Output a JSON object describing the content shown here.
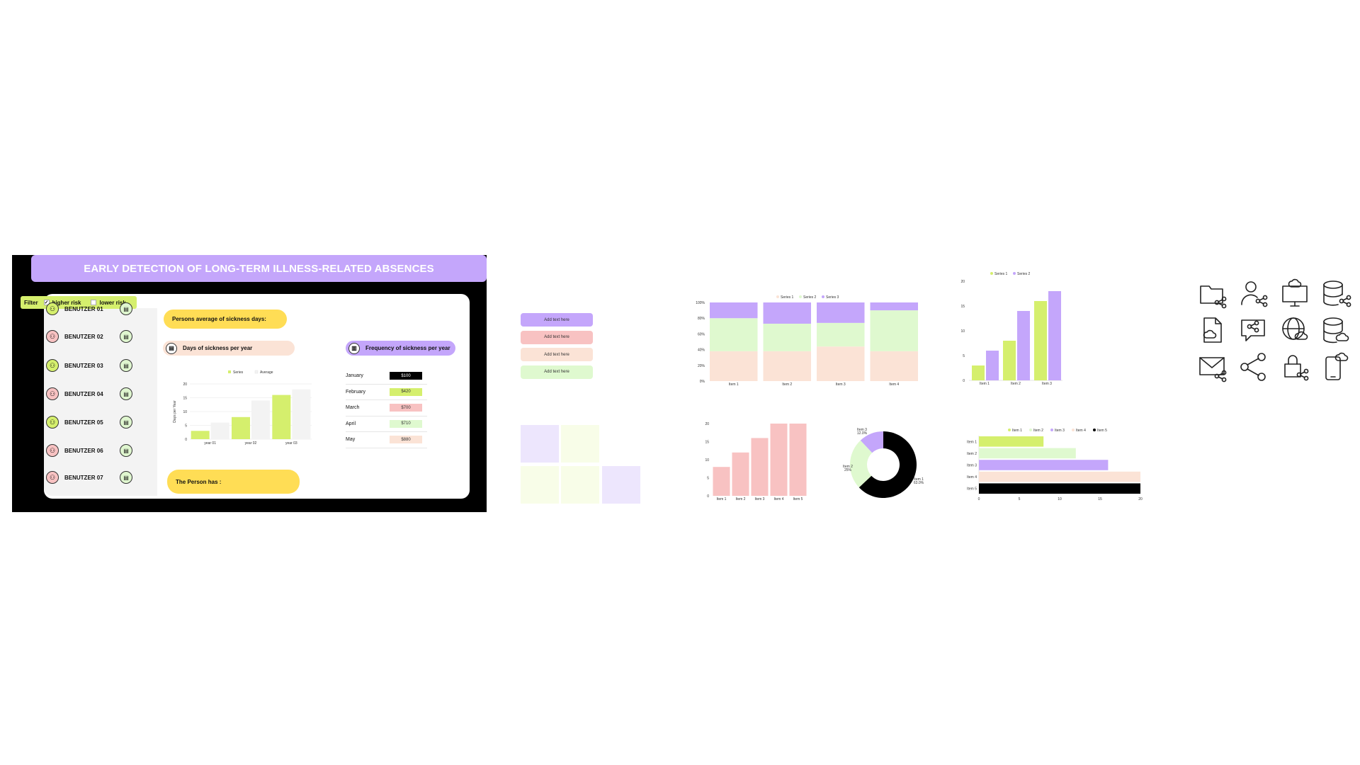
{
  "dashboard": {
    "title": "EARLY DETECTION OF LONG-TERM ILLNESS-RELATED ABSENCES",
    "filter": {
      "label": "Filter",
      "options": [
        {
          "label": "higher risk",
          "checked": true
        },
        {
          "label": "lower risk",
          "checked": false
        }
      ]
    },
    "users": [
      {
        "name": "BENUTZER 01",
        "risk": "low"
      },
      {
        "name": "BENUTZER 02",
        "risk": "high"
      },
      {
        "name": "BENUTZER 03",
        "risk": "low"
      },
      {
        "name": "BENUTZER 04",
        "risk": "high"
      },
      {
        "name": "BENUTZER 05",
        "risk": "low"
      },
      {
        "name": "BENUTZER 06",
        "risk": "high"
      },
      {
        "name": "BENUTZER 07",
        "risk": "high"
      }
    ],
    "avg_days_label": "Persons average of sickness days:",
    "days_per_year_label": "Days of sickness per year",
    "frequency_label": "Frequency of sickness per year",
    "person_has_label": "The Person has :",
    "frequency_rows": [
      {
        "month": "January",
        "value": "$100",
        "color": "#000000",
        "text_color": "#ffffff"
      },
      {
        "month": "February",
        "value": "$420",
        "color": "#d5ef6d",
        "text_color": "#333333"
      },
      {
        "month": "March",
        "value": "$700",
        "color": "#f8c2c2",
        "text_color": "#333333"
      },
      {
        "month": "April",
        "value": "$710",
        "color": "#dff9cf",
        "text_color": "#333333"
      },
      {
        "month": "May",
        "value": "$880",
        "color": "#fbe3d6",
        "text_color": "#333333"
      }
    ],
    "colors": {
      "accent_purple": "#c4a6fb",
      "lime": "#d5ef6d",
      "yellow": "#ffdd55",
      "peach": "#fbe3d6",
      "pink": "#f8c2c2",
      "mint": "#dff9cf"
    }
  },
  "swatch_buttons": [
    {
      "label": "Add text here",
      "color": "#c4a6fb"
    },
    {
      "label": "Add text here",
      "color": "#f8c2c2"
    },
    {
      "label": "Add text here",
      "color": "#fbe3d6"
    },
    {
      "label": "Add text here",
      "color": "#dff9cf"
    }
  ],
  "color_squares": [
    "#ede6fd",
    "#f8fde8",
    "#f8fde8",
    "#f8fde8",
    "#ede6fd"
  ],
  "icons": [
    "folder-share-icon",
    "user-share-icon",
    "monitor-cloud-icon",
    "database-share-icon",
    "file-cloud-icon",
    "chat-share-icon",
    "globe-cloud-icon",
    "database-cloud-icon",
    "mail-share-icon",
    "share-icon",
    "lock-share-icon",
    "mobile-cloud-icon"
  ],
  "chart_data": [
    {
      "id": "days-per-year",
      "type": "bar",
      "ylabel": "Days per Year",
      "categories": [
        "year 01",
        "year 02",
        "year 03"
      ],
      "series": [
        {
          "name": "Series",
          "values": [
            3,
            8,
            16
          ],
          "color": "#d5ef6d"
        },
        {
          "name": "Average",
          "values": [
            6,
            14,
            18
          ],
          "color": "#f3f3f3"
        }
      ],
      "ylim": [
        0,
        20
      ],
      "yticks": [
        0,
        5,
        10,
        15,
        20
      ]
    },
    {
      "id": "stacked-percent",
      "type": "bar",
      "stacked": true,
      "categories": [
        "Item 1",
        "Item 2",
        "Item 3",
        "Item 4"
      ],
      "series": [
        {
          "name": "Series 1",
          "values": [
            38,
            38,
            44,
            38
          ],
          "color": "#fbe3d6"
        },
        {
          "name": "Series 2",
          "values": [
            42,
            35,
            30,
            52
          ],
          "color": "#dff9cf"
        },
        {
          "name": "Series 3",
          "values": [
            20,
            27,
            26,
            10
          ],
          "color": "#c4a6fb"
        }
      ],
      "ylim": [
        0,
        100
      ],
      "yticks": [
        "0%",
        "20%",
        "40%",
        "60%",
        "80%",
        "100%"
      ]
    },
    {
      "id": "grouped-bars",
      "type": "bar",
      "categories": [
        "Item 1",
        "Item 2",
        "Item 3"
      ],
      "series": [
        {
          "name": "Series 1",
          "values": [
            3,
            8,
            16
          ],
          "color": "#d5ef6d"
        },
        {
          "name": "Series 2",
          "values": [
            6,
            14,
            18
          ],
          "color": "#c4a6fb"
        }
      ],
      "ylim": [
        0,
        20
      ],
      "yticks": [
        0,
        5,
        10,
        15,
        20
      ]
    },
    {
      "id": "pink-bars",
      "type": "bar",
      "categories": [
        "Item 1",
        "Item 2",
        "Item 3",
        "Item 4",
        "Item 5"
      ],
      "values": [
        8,
        12,
        16,
        20,
        20
      ],
      "color": "#f8c2c2",
      "ylim": [
        0,
        20
      ],
      "yticks": [
        0,
        5,
        10,
        15,
        20
      ]
    },
    {
      "id": "donut",
      "type": "pie",
      "slices": [
        {
          "label": "Item 1",
          "pct_label": "63.0%",
          "value": 63,
          "color": "#000000"
        },
        {
          "label": "Item 2",
          "pct_label": "25%",
          "value": 25,
          "color": "#dff9cf"
        },
        {
          "label": "Item 3",
          "pct_label": "12.0%",
          "value": 12,
          "color": "#c4a6fb"
        }
      ]
    },
    {
      "id": "horizontal-bars",
      "type": "bar",
      "orientation": "horizontal",
      "categories": [
        "Item 1",
        "Item 2",
        "Item 3",
        "Item 4",
        "Item 5"
      ],
      "values": [
        8,
        12,
        16,
        20,
        20
      ],
      "colors": [
        "#d5ef6d",
        "#dff9cf",
        "#c4a6fb",
        "#fbe3d6",
        "#000000"
      ],
      "legend": [
        "Item 1",
        "Item 2",
        "Item 3",
        "Item 4",
        "Item 5"
      ],
      "xlim": [
        0,
        20
      ],
      "xticks": [
        0,
        5,
        10,
        15,
        20
      ]
    }
  ]
}
